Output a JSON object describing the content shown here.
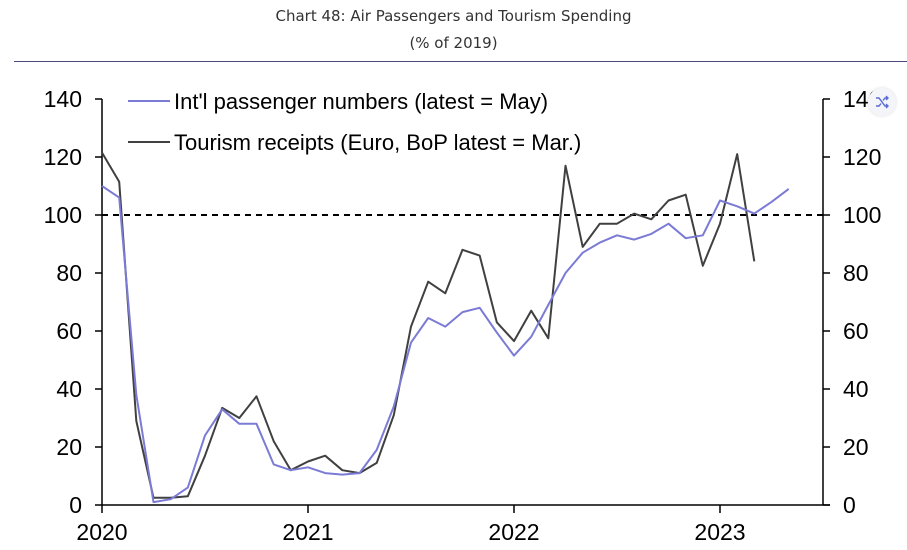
{
  "header": {
    "title": "Chart 48: Air Passengers and Tourism Spending",
    "subtitle": "(% of 2019)"
  },
  "colors": {
    "passengers": "#7b7bd6",
    "receipts": "#404040",
    "reference": "#000000"
  },
  "icons": {
    "corner": "shuffle-icon"
  },
  "chart_data": {
    "type": "line",
    "title": "Chart 48: Air Passengers and Tourism Spending",
    "subtitle": "(% of 2019)",
    "xlabel": "",
    "ylabel": "",
    "x_range": [
      "2020-01",
      "2023-06"
    ],
    "x_ticks": [
      "2020",
      "2021",
      "2022",
      "2023"
    ],
    "ylim": [
      0,
      140
    ],
    "y_ticks": [
      "0",
      "20",
      "40",
      "60",
      "80",
      "100",
      "120",
      "140"
    ],
    "y2_ticks": [
      "0",
      "20",
      "40",
      "60",
      "80",
      "100",
      "120",
      "140"
    ],
    "grid": false,
    "legend_placement": "top-left",
    "reference_line": {
      "y": 100,
      "style": "dashed"
    },
    "series": [
      {
        "name": "Int'l passenger numbers (latest = May)",
        "color": "#7b7bd6",
        "x": [
          "2020-01",
          "2020-02",
          "2020-03",
          "2020-04",
          "2020-05",
          "2020-06",
          "2020-07",
          "2020-08",
          "2020-09",
          "2020-10",
          "2020-11",
          "2020-12",
          "2021-01",
          "2021-02",
          "2021-03",
          "2021-04",
          "2021-05",
          "2021-06",
          "2021-07",
          "2021-08",
          "2021-09",
          "2021-10",
          "2021-11",
          "2021-12",
          "2022-01",
          "2022-02",
          "2022-03",
          "2022-04",
          "2022-05",
          "2022-06",
          "2022-07",
          "2022-08",
          "2022-09",
          "2022-10",
          "2022-11",
          "2022-12",
          "2023-01",
          "2023-02",
          "2023-03",
          "2023-04",
          "2023-05"
        ],
        "values": [
          110,
          106,
          38,
          1,
          2,
          6,
          24,
          33,
          28,
          28,
          14,
          12,
          13,
          11,
          10.5,
          11,
          19,
          34,
          56,
          64.5,
          61.5,
          66.5,
          68,
          59.5,
          51.5,
          58,
          69,
          80,
          87,
          90.5,
          93,
          91.5,
          93.5,
          97,
          92,
          93,
          105,
          103,
          100.5,
          104.5,
          109
        ]
      },
      {
        "name": "Tourism receipts (Euro, BoP latest = Mar.)",
        "color": "#404040",
        "x": [
          "2020-01",
          "2020-02",
          "2020-03",
          "2020-04",
          "2020-05",
          "2020-06",
          "2020-07",
          "2020-08",
          "2020-09",
          "2020-10",
          "2020-11",
          "2020-12",
          "2021-01",
          "2021-02",
          "2021-03",
          "2021-04",
          "2021-05",
          "2021-06",
          "2021-07",
          "2021-08",
          "2021-09",
          "2021-10",
          "2021-11",
          "2021-12",
          "2022-01",
          "2022-02",
          "2022-03",
          "2022-04",
          "2022-05",
          "2022-06",
          "2022-07",
          "2022-08",
          "2022-09",
          "2022-10",
          "2022-11",
          "2022-12",
          "2023-01",
          "2023-02",
          "2023-03"
        ],
        "values": [
          121.5,
          111.5,
          29,
          2.5,
          2.5,
          3,
          17,
          33.5,
          30,
          37.5,
          22,
          12,
          15,
          17,
          12,
          11,
          14.5,
          31,
          61.5,
          77,
          73,
          88,
          86,
          63,
          56.5,
          67,
          57.5,
          117,
          89,
          97,
          97,
          100.5,
          98.5,
          105,
          107,
          82.5,
          97,
          121,
          84
        ]
      }
    ]
  }
}
